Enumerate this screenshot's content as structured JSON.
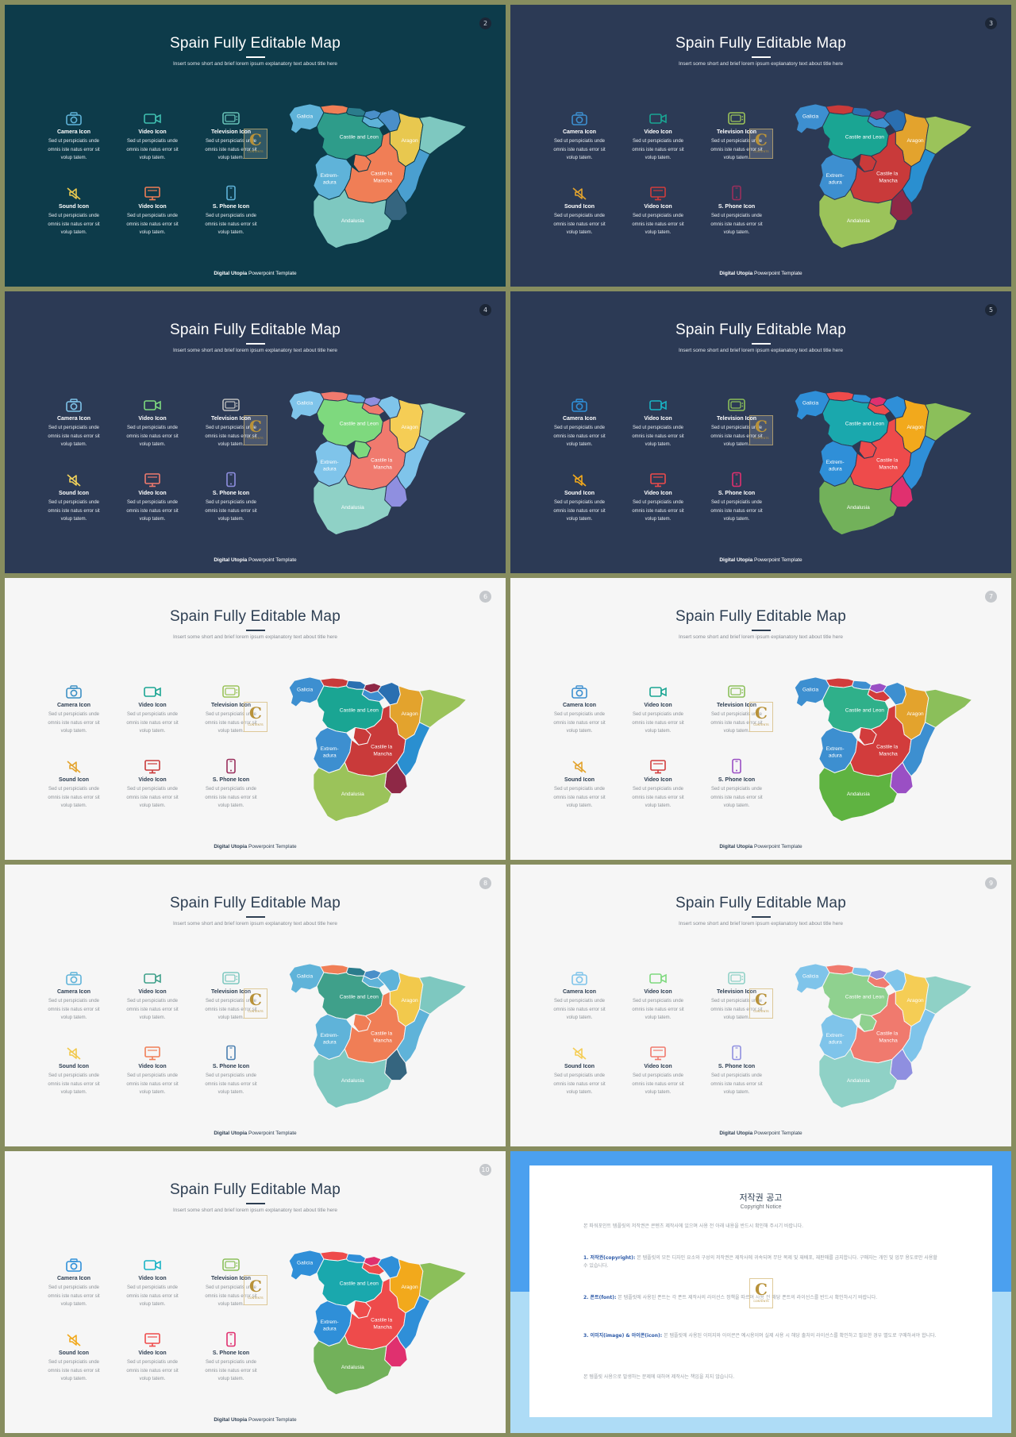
{
  "slides": [
    {
      "theme": "teal",
      "mode": "dark",
      "page": "2",
      "palette": {
        "icons": [
          "#5fb3d9",
          "#3fbfb0",
          "#66c2b8",
          "#e8c84f",
          "#f07e56",
          "#5fb3d9"
        ],
        "map": {
          "galicia": "#5fb3d9",
          "asturias": "#f07e56",
          "cantabria": "#2b7c8c",
          "basque": "#4a8fc9",
          "navarra": "#4a8fc9",
          "castile_leon": "#2e9c8a",
          "aragon": "#e8c84f",
          "catalonia": "#7ec8c0",
          "la_rioja": "#5fb3d9",
          "madrid": "#f07e56",
          "extremadura": "#5fb3d9",
          "castile_la_mancha": "#f07e56",
          "valencia": "#4a9fd0",
          "murcia": "#35657f",
          "andalusia": "#7ec8c0"
        }
      }
    },
    {
      "theme": "navy",
      "mode": "dark",
      "page": "3",
      "palette": {
        "icons": [
          "#3d8fd0",
          "#1aa593",
          "#9bc35a",
          "#e3a32d",
          "#d23c3c",
          "#9a2f5c"
        ],
        "map": {
          "galicia": "#3d8fd0",
          "asturias": "#c93a3a",
          "cantabria": "#2a6fb1",
          "basque": "#a02e5a",
          "navarra": "#2a6fb1",
          "castile_leon": "#1aa593",
          "aragon": "#e3a32d",
          "catalonia": "#9bc35a",
          "la_rioja": "#3d8fd0",
          "madrid": "#c93a3a",
          "extremadura": "#3d8fd0",
          "castile_la_mancha": "#c93a3a",
          "valencia": "#2a8fd0",
          "murcia": "#8e2846",
          "andalusia": "#9bc35a"
        }
      }
    },
    {
      "theme": "navy",
      "mode": "dark",
      "page": "4",
      "palette": {
        "icons": [
          "#7fc4ea",
          "#7ed97e",
          "#bfbfbf",
          "#f2d25a",
          "#f07a6e",
          "#8f8fe0"
        ],
        "map": {
          "galicia": "#7fc4ea",
          "asturias": "#f07a6e",
          "cantabria": "#5fa8e0",
          "basque": "#8f8fe0",
          "navarra": "#7fc4ea",
          "castile_leon": "#7ed97e",
          "aragon": "#f5cd55",
          "catalonia": "#8fd1c6",
          "la_rioja": "#f07a6e",
          "madrid": "#7ed97e",
          "extremadura": "#7fc4ea",
          "castile_la_mancha": "#f07a6e",
          "valencia": "#7fc4ea",
          "murcia": "#8f8fe0",
          "andalusia": "#8fd1c6"
        }
      }
    },
    {
      "theme": "navy",
      "mode": "dark",
      "page": "5",
      "palette": {
        "icons": [
          "#2f8fd8",
          "#19b3c5",
          "#8bbf5a",
          "#f2a91c",
          "#ee4b4b",
          "#e0306f"
        ],
        "map": {
          "galicia": "#2f8fd8",
          "asturias": "#ee4b4b",
          "cantabria": "#2f8fd8",
          "basque": "#e0306f",
          "navarra": "#2f8fd8",
          "castile_leon": "#1aa8ad",
          "aragon": "#f2a91c",
          "catalonia": "#8bbf5a",
          "la_rioja": "#ee4b4b",
          "madrid": "#ee4b4b",
          "extremadura": "#2f8fd8",
          "castile_la_mancha": "#ee4b4b",
          "valencia": "#2f8fd8",
          "murcia": "#e0306f",
          "andalusia": "#72b15a"
        }
      }
    },
    {
      "theme": "light",
      "mode": "light",
      "page": "6",
      "palette": {
        "icons": [
          "#3c8fc4",
          "#1aa593",
          "#9bc35a",
          "#e3a32d",
          "#c93a3a",
          "#9a2f5c"
        ],
        "map": {
          "galicia": "#3d8fd0",
          "asturias": "#c93a3a",
          "cantabria": "#2a6fb1",
          "basque": "#8e2846",
          "navarra": "#2a6fb1",
          "castile_leon": "#1aa593",
          "aragon": "#e3a32d",
          "catalonia": "#9bc35a",
          "la_rioja": "#3d8fd0",
          "madrid": "#c93a3a",
          "extremadura": "#3d8fd0",
          "castile_la_mancha": "#c93a3a",
          "valencia": "#2a8fd0",
          "murcia": "#8e2846",
          "andalusia": "#9bc35a"
        }
      }
    },
    {
      "theme": "light",
      "mode": "light",
      "page": "7",
      "palette": {
        "icons": [
          "#3d8fd0",
          "#1aa593",
          "#8bbf5a",
          "#e3a32d",
          "#d23c3c",
          "#9a4fc4"
        ],
        "map": {
          "galicia": "#3d8fd0",
          "asturias": "#d23c3c",
          "cantabria": "#3d8fd0",
          "basque": "#9a4fc4",
          "navarra": "#3d8fd0",
          "castile_leon": "#2fb08a",
          "aragon": "#e3a32d",
          "catalonia": "#8bbf5a",
          "la_rioja": "#d23c3c",
          "madrid": "#d23c3c",
          "extremadura": "#3d8fd0",
          "castile_la_mancha": "#d23c3c",
          "valencia": "#3d8fd0",
          "murcia": "#9a4fc4",
          "andalusia": "#5fb341"
        }
      }
    },
    {
      "theme": "light",
      "mode": "light",
      "page": "8",
      "palette": {
        "icons": [
          "#5fb3d9",
          "#3fa08a",
          "#7ec8c0",
          "#f2c94c",
          "#f07e56",
          "#4a7fb0"
        ],
        "map": {
          "galicia": "#5fb3d9",
          "asturias": "#f07e56",
          "cantabria": "#2b7c8c",
          "basque": "#4a8fc9",
          "navarra": "#5fb3d9",
          "castile_leon": "#3fa08a",
          "aragon": "#f2c94c",
          "catalonia": "#7ec8c0",
          "la_rioja": "#5fb3d9",
          "madrid": "#f07e56",
          "extremadura": "#5fb3d9",
          "castile_la_mancha": "#f07e56",
          "valencia": "#5fb3d9",
          "murcia": "#35657f",
          "andalusia": "#7ec8c0"
        }
      }
    },
    {
      "theme": "light",
      "mode": "light",
      "page": "9",
      "palette": {
        "icons": [
          "#7fc4ea",
          "#7ed97e",
          "#8fd1c6",
          "#f5cd55",
          "#f07a6e",
          "#8f8fe0"
        ],
        "map": {
          "galicia": "#7fc4ea",
          "asturias": "#f07a6e",
          "cantabria": "#7fc4ea",
          "basque": "#8f8fe0",
          "navarra": "#7fc4ea",
          "castile_leon": "#8fd18f",
          "aragon": "#f5cd55",
          "catalonia": "#8fd1c6",
          "la_rioja": "#f07a6e",
          "madrid": "#8fd18f",
          "extremadura": "#7fc4ea",
          "castile_la_mancha": "#f07a6e",
          "valencia": "#7fc4ea",
          "murcia": "#8f8fe0",
          "andalusia": "#8fd1c6"
        }
      }
    },
    {
      "theme": "light",
      "mode": "light",
      "page": "10",
      "palette": {
        "icons": [
          "#2f8fd8",
          "#19b3c5",
          "#8bbf5a",
          "#f2a91c",
          "#ee4b4b",
          "#e0306f"
        ],
        "map": {
          "galicia": "#2f8fd8",
          "asturias": "#ee4b4b",
          "cantabria": "#2f8fd8",
          "basque": "#e0306f",
          "navarra": "#2f8fd8",
          "castile_leon": "#1aa8ad",
          "aragon": "#f2a91c",
          "catalonia": "#8bbf5a",
          "la_rioja": "#ee4b4b",
          "madrid": "#ee4b4b",
          "extremadura": "#2f8fd8",
          "castile_la_mancha": "#ee4b4b",
          "valencia": "#2f8fd8",
          "murcia": "#e0306f",
          "andalusia": "#72b15a"
        }
      }
    }
  ],
  "content": {
    "title": "Spain Fully Editable Map",
    "subtitle": "Insert some short and brief lorem ipsum explanatory text about title here",
    "icons": [
      {
        "icon": "camera-icon",
        "label": "Camera Icon",
        "desc": "Sed ut perspiciatis unde omnis iste natus error sit volup tatem."
      },
      {
        "icon": "video-icon",
        "label": "Video Icon",
        "desc": "Sed ut perspiciatis unde omnis iste natus error sit volup tatem."
      },
      {
        "icon": "television-icon",
        "label": "Television Icon",
        "desc": "Sed ut perspiciatis unde omnis iste natus error sit volup tatem."
      },
      {
        "icon": "sound-icon",
        "label": "Sound Icon",
        "desc": "Sed ut perspiciatis unde omnis iste natus error sit volup tatem."
      },
      {
        "icon": "monitor-icon",
        "label": "Video Icon",
        "desc": "Sed ut perspiciatis unde omnis iste natus error sit volup tatem."
      },
      {
        "icon": "phone-icon",
        "label": "S. Phone Icon",
        "desc": "Sed ut perspiciatis unde omnis iste natus error sit volup tatem."
      }
    ],
    "regions": {
      "galicia": "Galicia",
      "castile_leon": "Castile and Leon",
      "aragon": "Aragon",
      "extremadura_1": "Extrem-",
      "extremadura_2": "adura",
      "clm_1": "Castile la",
      "clm_2": "Mancha",
      "andalusia": "Andalusia"
    },
    "footer_bold": "Digital Utopia",
    "footer_rest": " Powerpoint Template",
    "watermark_letter": "C",
    "watermark_text": "CONTENTS"
  },
  "copyright": {
    "title": "저작권 공고",
    "subtitle": "Copyright Notice",
    "colors": {
      "top": "#4ba0ef",
      "bottom": "#aedcf6"
    },
    "para1": "본 파워포인트 템플릿의 저작권은 콘텐츠 제작사에 있으며 사용 전 아래 내용을 반드시 확인해 주시기 바랍니다.",
    "para2_head": "1. 저작권(copyright):",
    "para2": " 본 템플릿의 모든 디자인 요소와 구성의 저작권은 제작사에 귀속되며 무단 복제 및 재배포, 재판매를 금지합니다. 구매자는 개인 및 업무 용도로만 사용할 수 있습니다.",
    "para3_head": "2. 폰트(font):",
    "para3": " 본 템플릿에 사용된 폰트는 각 폰트 제작사의 라이선스 정책을 따르며 사용 전 해당 폰트의 라이선스를 반드시 확인하시기 바랍니다.",
    "para4_head": "3. 이미지(image) & 아이콘(icon):",
    "para4": " 본 템플릿에 사용된 이미지와 아이콘은 예시용이며 실제 사용 시 해당 출처의 라이선스를 확인하고 필요한 경우 별도로 구매하셔야 합니다.",
    "para5": "본 템플릿 사용으로 발생하는 문제에 대하여 제작사는 책임을 지지 않습니다."
  }
}
